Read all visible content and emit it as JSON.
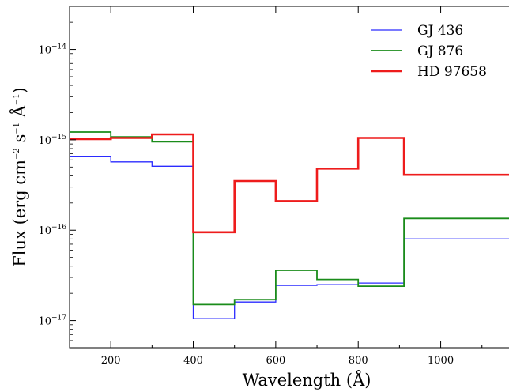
{
  "chart_data": {
    "type": "line",
    "step": true,
    "xlabel": "Wavelength (Å)",
    "ylabel": {
      "prefix": "Flux (erg cm",
      "exp1": "−2",
      "mid1": " s",
      "exp2": "−1",
      "mid2": " Å",
      "exp3": "−1",
      "suffix": ")"
    },
    "x_scale": "linear",
    "y_scale": "log",
    "xlim": [
      100,
      1170
    ],
    "ylim": [
      5e-18,
      3e-14
    ],
    "x_ticks": [
      {
        "value": 200,
        "label": "200"
      },
      {
        "value": 400,
        "label": "400"
      },
      {
        "value": 600,
        "label": "600"
      },
      {
        "value": 800,
        "label": "800"
      },
      {
        "value": 1000,
        "label": "1000"
      }
    ],
    "y_ticks": [
      {
        "value": 1e-17,
        "base": "10",
        "exp": "−17"
      },
      {
        "value": 1e-16,
        "base": "10",
        "exp": "−16"
      },
      {
        "value": 1e-15,
        "base": "10",
        "exp": "−15"
      },
      {
        "value": 1e-14,
        "base": "10",
        "exp": "−14"
      }
    ],
    "legend_position": "top-right",
    "grid": false,
    "series": [
      {
        "name": "GJ 436",
        "color": "#2b2bff",
        "bins": [
          {
            "x0": 100,
            "x1": 200,
            "y": 6.5e-16
          },
          {
            "x0": 200,
            "x1": 300,
            "y": 5.7e-16
          },
          {
            "x0": 300,
            "x1": 400,
            "y": 5.1e-16
          },
          {
            "x0": 400,
            "x1": 500,
            "y": 1.05e-17
          },
          {
            "x0": 500,
            "x1": 600,
            "y": 1.6e-17
          },
          {
            "x0": 600,
            "x1": 700,
            "y": 2.45e-17
          },
          {
            "x0": 700,
            "x1": 800,
            "y": 2.5e-17
          },
          {
            "x0": 800,
            "x1": 911,
            "y": 2.6e-17
          },
          {
            "x0": 911,
            "x1": 1170,
            "y": 8e-17
          }
        ]
      },
      {
        "name": "GJ 876",
        "color": "#1a8c1a",
        "bins": [
          {
            "x0": 100,
            "x1": 200,
            "y": 1.22e-15
          },
          {
            "x0": 200,
            "x1": 300,
            "y": 1.08e-15
          },
          {
            "x0": 300,
            "x1": 400,
            "y": 9.5e-16
          },
          {
            "x0": 400,
            "x1": 500,
            "y": 1.5e-17
          },
          {
            "x0": 500,
            "x1": 600,
            "y": 1.7e-17
          },
          {
            "x0": 600,
            "x1": 700,
            "y": 3.6e-17
          },
          {
            "x0": 700,
            "x1": 800,
            "y": 2.85e-17
          },
          {
            "x0": 800,
            "x1": 911,
            "y": 2.4e-17
          },
          {
            "x0": 911,
            "x1": 1170,
            "y": 1.35e-16
          }
        ]
      },
      {
        "name": "HD 97658",
        "color": "#ee1c1c",
        "bins": [
          {
            "x0": 100,
            "x1": 200,
            "y": 1.02e-15
          },
          {
            "x0": 200,
            "x1": 300,
            "y": 1.05e-15
          },
          {
            "x0": 300,
            "x1": 400,
            "y": 1.15e-15
          },
          {
            "x0": 400,
            "x1": 500,
            "y": 9.5e-17
          },
          {
            "x0": 500,
            "x1": 600,
            "y": 3.5e-16
          },
          {
            "x0": 600,
            "x1": 700,
            "y": 2.1e-16
          },
          {
            "x0": 700,
            "x1": 800,
            "y": 4.8e-16
          },
          {
            "x0": 800,
            "x1": 911,
            "y": 1.05e-15
          },
          {
            "x0": 911,
            "x1": 1170,
            "y": 4.1e-16
          }
        ]
      }
    ]
  }
}
